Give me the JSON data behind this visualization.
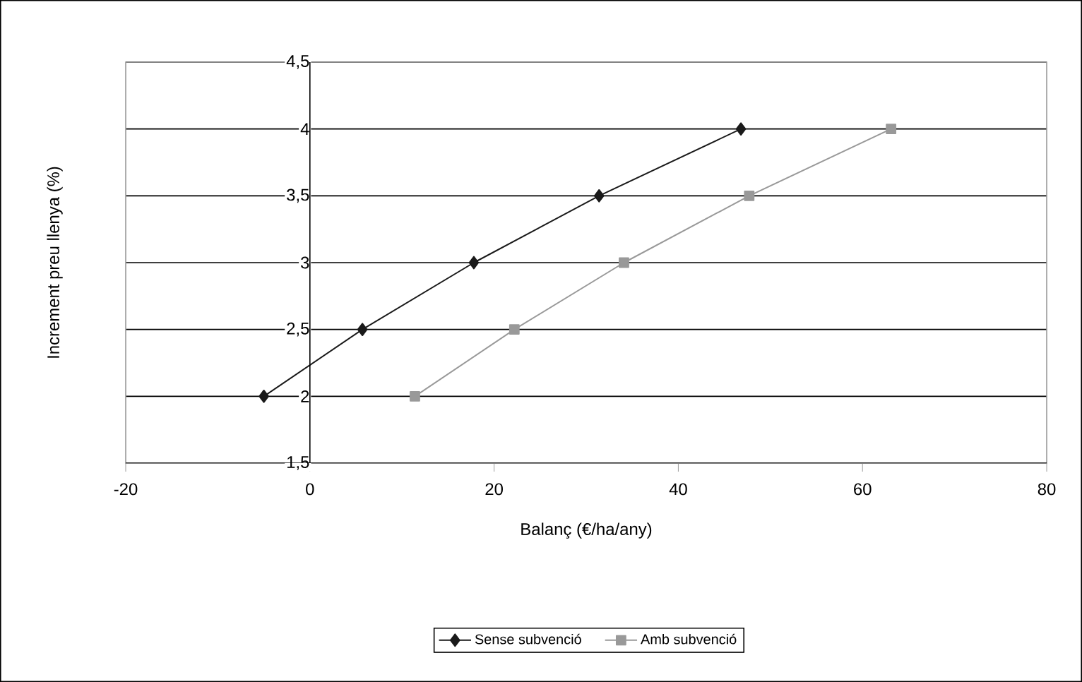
{
  "chart_data": {
    "type": "line",
    "xlabel": "Balanç (€/ha/any)",
    "ylabel": "Increment preu llenya (%)",
    "series": [
      {
        "name": "Sense subvenció",
        "color": "#1a1a1a",
        "marker": "diamond",
        "x": [
          -5,
          5.7,
          17.8,
          31.4,
          46.8
        ],
        "values": [
          2,
          2.5,
          3,
          3.5,
          4
        ]
      },
      {
        "name": "Amb subvenció",
        "color": "#999999",
        "marker": "square",
        "x": [
          11.4,
          22.2,
          34.1,
          47.7,
          63.1
        ],
        "values": [
          2,
          2.5,
          3,
          3.5,
          4
        ]
      }
    ],
    "xlim": [
      -20,
      80
    ],
    "xticks": [
      -20,
      0,
      20,
      40,
      60,
      80
    ],
    "ylim": [
      1.5,
      4.5
    ],
    "yticks": [
      {
        "value": 1.5,
        "label": "1,5"
      },
      {
        "value": 2,
        "label": "2"
      },
      {
        "value": 2.5,
        "label": "2,5"
      },
      {
        "value": 3,
        "label": "3"
      },
      {
        "value": 3.5,
        "label": "3,5"
      },
      {
        "value": 4,
        "label": "4"
      },
      {
        "value": 4.5,
        "label": "4,5"
      }
    ],
    "grid": "y",
    "legend": "bottom"
  }
}
